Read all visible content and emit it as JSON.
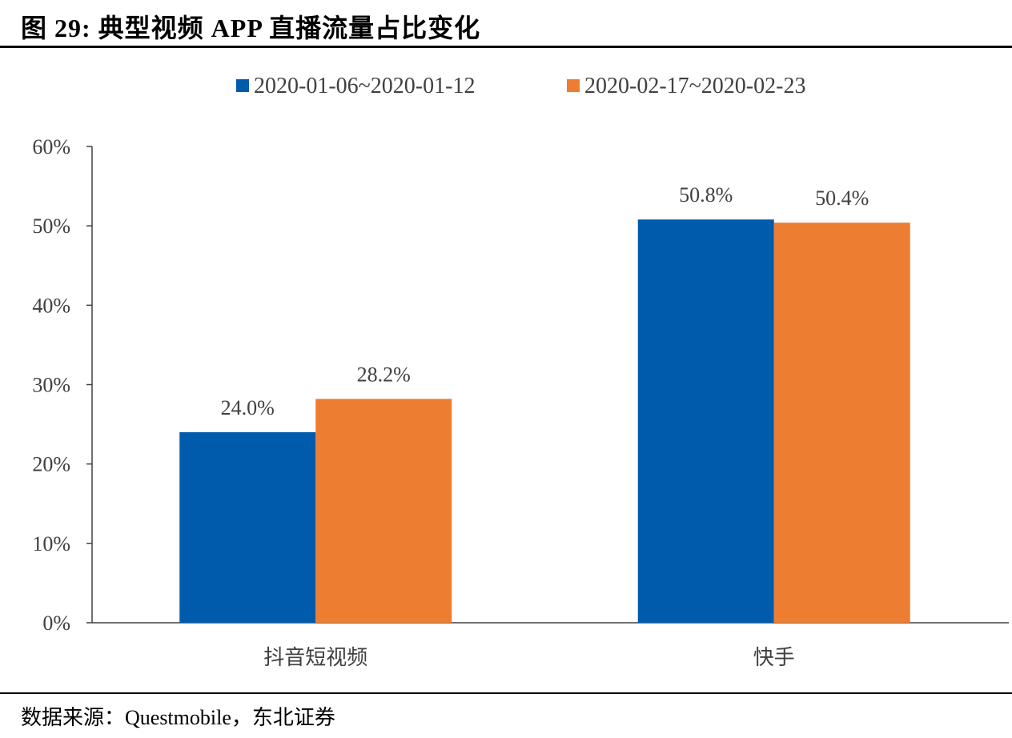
{
  "title": "图 29: 典型视频 APP 直播流量占比变化",
  "source": "数据来源：Questmobile，东北证券",
  "chart_data": {
    "type": "bar",
    "title": "",
    "xlabel": "",
    "ylabel": "",
    "categories": [
      "抖音短视频",
      "快手"
    ],
    "series": [
      {
        "name": "2020-01-06~2020-01-12",
        "values": [
          24.0,
          50.8
        ],
        "color": "#005BAC",
        "labels": [
          "24.0%",
          "50.8%"
        ]
      },
      {
        "name": "2020-02-17~2020-02-23",
        "values": [
          28.2,
          50.4
        ],
        "color": "#ED7D31",
        "labels": [
          "28.2%",
          "50.4%"
        ]
      }
    ],
    "ylim": [
      0,
      60
    ],
    "yticks": [
      "0%",
      "10%",
      "20%",
      "30%",
      "40%",
      "50%",
      "60%"
    ],
    "grid": false,
    "legend": "top-center"
  }
}
